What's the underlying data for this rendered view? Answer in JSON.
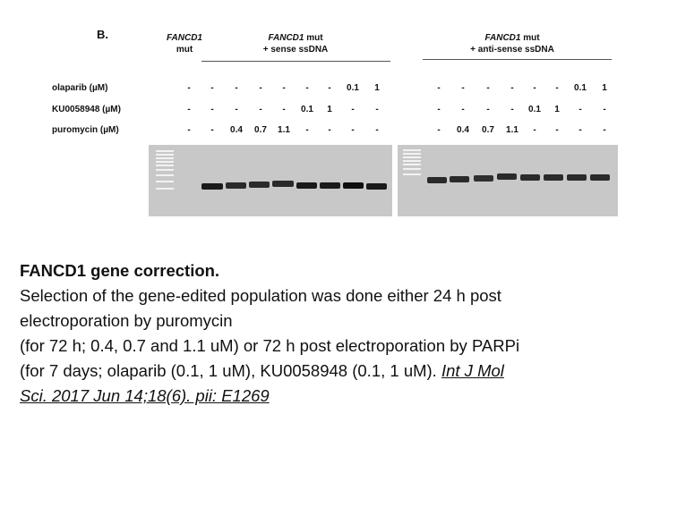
{
  "figure": {
    "panel_label": "B.",
    "groups": [
      {
        "name_italic": "FANCD1",
        "name_rest": "",
        "line2": "mut"
      },
      {
        "name_italic": "FANCD1",
        "name_rest": " mut",
        "line2": "+ sense ssDNA"
      },
      {
        "name_italic": "FANCD1",
        "name_rest": " mut",
        "line2": "+ anti-sense ssDNA"
      }
    ],
    "rows": [
      {
        "label": "olaparib (µM)",
        "left": [
          "-",
          "-",
          "-",
          "-",
          "-",
          "-",
          "-",
          "0.1",
          "1"
        ],
        "right": [
          "-",
          "-",
          "-",
          "-",
          "-",
          "-",
          "0.1",
          "1"
        ]
      },
      {
        "label": "KU0058948 (µM)",
        "left": [
          "-",
          "-",
          "-",
          "-",
          "-",
          "0.1",
          "1",
          "-",
          "-"
        ],
        "right": [
          "-",
          "-",
          "-",
          "-",
          "0.1",
          "1",
          "-",
          "-"
        ]
      },
      {
        "label": "puromycin (µM)",
        "left": [
          "-",
          "-",
          "0.4",
          "0.7",
          "1.1",
          "-",
          "-",
          "-",
          "-"
        ],
        "right": [
          "-",
          "0.4",
          "0.7",
          "1.1",
          "-",
          "-",
          "-",
          "-"
        ]
      }
    ]
  },
  "caption": {
    "title": "FANCD1 gene correction.",
    "line1": "Selection of the gene-edited population was done either 24 h post",
    "line2": "electroporation by puromycin",
    "line3": "(for 72 h; 0.4, 0.7 and 1.1 uM) or 72 h post electroporation by PARPi",
    "line4": "(for 7 days; olaparib (0.1, 1 uM), KU0058948 (0.1, 1 uM). ",
    "citation_part1": "Int J Mol",
    "citation_part2": "Sci. 2017 Jun 14;18(6). pii: E1269"
  }
}
